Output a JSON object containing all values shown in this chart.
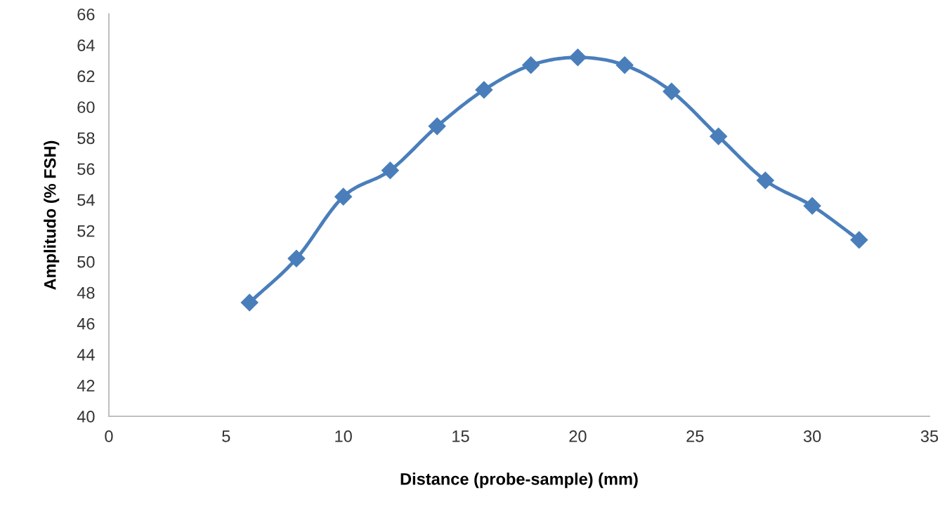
{
  "chart_data": {
    "type": "line",
    "xlabel": "Distance (probe-sample) (mm)",
    "ylabel": "Amplitudo (% FSH)",
    "x": [
      6,
      8,
      10,
      12,
      14,
      16,
      18,
      20,
      22,
      24,
      26,
      28,
      30,
      32
    ],
    "series": [
      {
        "color": "#4a7ebb",
        "values": [
          47.35,
          50.2,
          54.2,
          55.9,
          58.75,
          61.1,
          62.7,
          63.2,
          62.7,
          61.0,
          58.1,
          55.25,
          53.6,
          51.4
        ]
      }
    ],
    "xlim": [
      0,
      35
    ],
    "xticks": [
      0,
      5,
      10,
      15,
      20,
      25,
      30,
      35
    ],
    "ylim": [
      40,
      66
    ],
    "yticks": [
      40,
      42,
      44,
      46,
      48,
      50,
      52,
      54,
      56,
      58,
      60,
      62,
      64,
      66
    ],
    "grid": false,
    "legend": false,
    "marker": "diamond",
    "line_style": "solid"
  }
}
